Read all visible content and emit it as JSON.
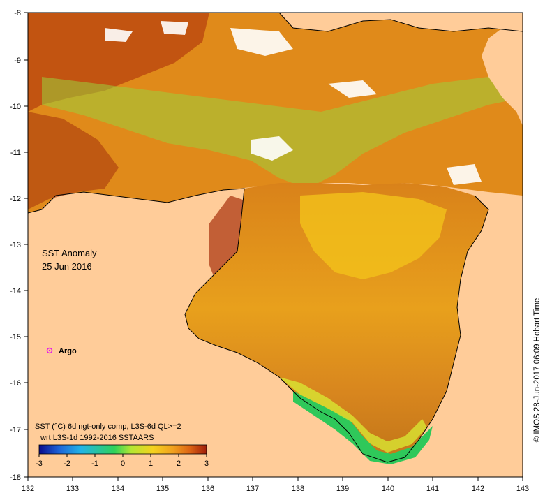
{
  "map": {
    "title": "SST Anomaly",
    "date": "25 Jun 2016",
    "marker_label": "Argo",
    "caption_line1": "SST (°C) 6d ngt-only comp, L3S-6d QL>=2",
    "caption_line2": "wrt L3S-1d 1992-2016 SSTAARS",
    "credit": "© IMOS 28-Jun-2017 06:09 Hobart Time",
    "x_ticks": [
      "132",
      "133",
      "134",
      "135",
      "136",
      "137",
      "138",
      "139",
      "140",
      "141",
      "142",
      "143"
    ],
    "y_ticks": [
      "-8",
      "-9",
      "-10",
      "-11",
      "-12",
      "-13",
      "-14",
      "-15",
      "-16",
      "-17",
      "-18"
    ],
    "colorbar": {
      "ticks": [
        "-3",
        "-2",
        "-1",
        "0",
        "1",
        "2",
        "3"
      ],
      "colors": [
        "#0a0a8c",
        "#1e64d8",
        "#22b4e6",
        "#2fd25a",
        "#b4e632",
        "#f5d21e",
        "#f0a01e",
        "#dc6414",
        "#a01e0a"
      ]
    },
    "colors": {
      "land": "#ffcc99",
      "marker": "#e61ee6"
    }
  }
}
